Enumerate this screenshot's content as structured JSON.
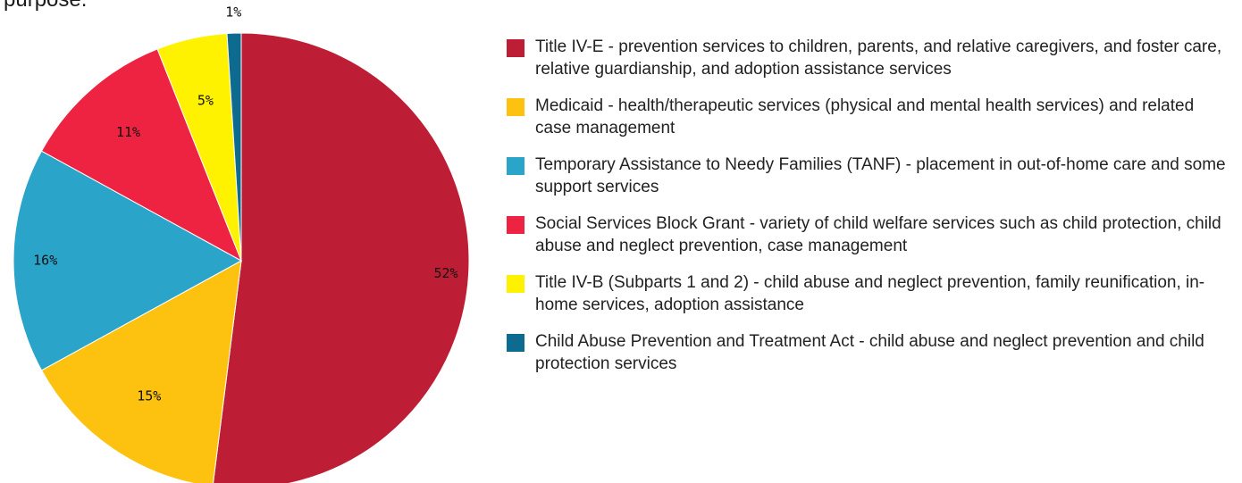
{
  "page": {
    "top_text": "purpose."
  },
  "chart_data": {
    "type": "pie",
    "start_angle_deg": 0,
    "direction": "clockwise",
    "slices": [
      {
        "label": "Title IV-E - prevention services to children, parents, and relative caregivers, and foster care, relative guardianship, and adoption assistance services",
        "value": 52,
        "display": "52%",
        "color": "#be1e35"
      },
      {
        "label": "Medicaid - health/therapeutic services (physical and mental health services) and related case management",
        "value": 15,
        "display": "15%",
        "color": "#fdc20f"
      },
      {
        "label": "Temporary Assistance to Needy Families (TANF) - placement in out-of-home care and some support services",
        "value": 16,
        "display": "16%",
        "color": "#2aa4c8"
      },
      {
        "label": "Social Services Block Grant - variety of child welfare services such as child protection, child abuse and neglect prevention, case management",
        "value": 11,
        "display": "11%",
        "color": "#ee2342"
      },
      {
        "label": "Title IV-B (Subparts 1 and 2) - child abuse and neglect prevention, family reunification, in-home services, adoption assistance",
        "value": 5,
        "display": "5%",
        "color": "#fff200"
      },
      {
        "label": "Child Abuse Prevention and Treatment Act - child abuse and neglect prevention and child protection services",
        "value": 1,
        "display": "1%",
        "color": "#0e6b90"
      }
    ],
    "legend_position": "right"
  }
}
